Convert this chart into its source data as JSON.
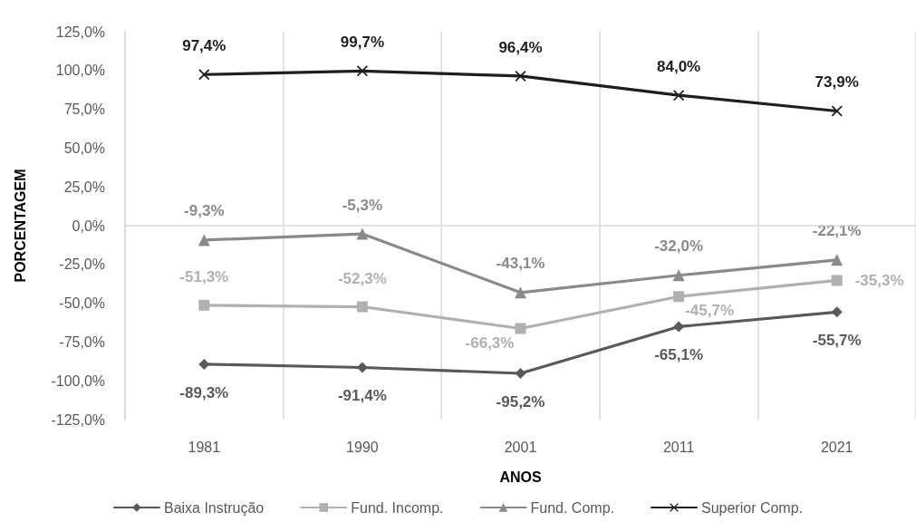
{
  "chart_data": {
    "type": "line",
    "xlabel": "ANOS",
    "ylabel": "PORCENTAGEM",
    "categories": [
      "1981",
      "1990",
      "2001",
      "2011",
      "2021"
    ],
    "series": [
      {
        "name": "Baixa Instrução",
        "color": "#595959",
        "marker": "diamond",
        "values": [
          -89.3,
          -91.4,
          -95.2,
          -65.1,
          -55.7
        ],
        "value_labels": [
          "-89,3%",
          "-91,4%",
          "-95,2%",
          "-65,1%",
          "-55,7%"
        ]
      },
      {
        "name": "Fund. Incomp.",
        "color": "#b0b0b0",
        "marker": "square",
        "values": [
          -51.3,
          -52.3,
          -66.3,
          -45.7,
          -35.3
        ],
        "value_labels": [
          "-51,3%",
          "-52,3%",
          "-66,3%",
          "-45,7%",
          "-35,3%"
        ]
      },
      {
        "name": "Fund. Comp.",
        "color": "#8a8a8a",
        "marker": "triangle",
        "values": [
          -9.3,
          -5.3,
          -43.1,
          -32.0,
          -22.1
        ],
        "value_labels": [
          "-9,3%",
          "-5,3%",
          "-43,1%",
          "-32,0%",
          "-22,1%"
        ]
      },
      {
        "name": "Superior Comp.",
        "color": "#1e1e1e",
        "marker": "cross",
        "values": [
          97.4,
          99.7,
          96.4,
          84.0,
          73.9
        ],
        "value_labels": [
          "97,4%",
          "99,7%",
          "96,4%",
          "84,0%",
          "73,9%"
        ]
      }
    ],
    "ylim": [
      -125,
      125
    ],
    "yticks": [
      {
        "value": -125,
        "label": "-125,0%"
      },
      {
        "value": -100,
        "label": "-100,0%"
      },
      {
        "value": -75,
        "label": "-75,0%"
      },
      {
        "value": -50,
        "label": "-50,0%"
      },
      {
        "value": -25,
        "label": "-25,0%"
      },
      {
        "value": 0,
        "label": "0,0%"
      },
      {
        "value": 25,
        "label": "25,0%"
      },
      {
        "value": 50,
        "label": "50,0%"
      },
      {
        "value": 75,
        "label": "75,0%"
      },
      {
        "value": 100,
        "label": "100,0%"
      },
      {
        "value": 125,
        "label": "125,0%"
      }
    ],
    "ref_lines": [
      {
        "axis": "y",
        "value": 0,
        "color": "#d9d9d9"
      }
    ],
    "grid": "x",
    "legend": "bottom",
    "line_style": "solid"
  }
}
